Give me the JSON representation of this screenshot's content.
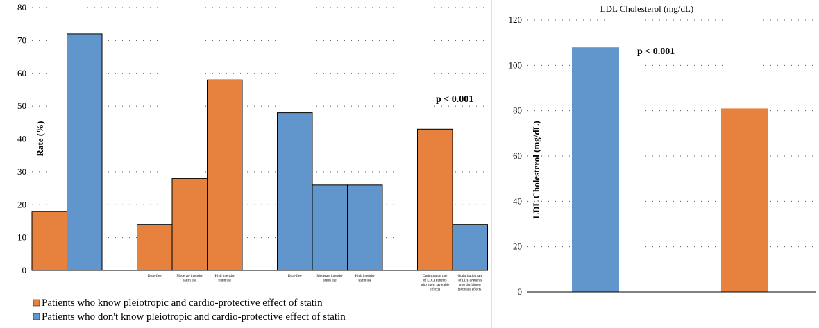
{
  "colors": {
    "orange": "#E7823E",
    "blue": "#6096CC",
    "grid": "#555555",
    "divider": "#bfbfbf"
  },
  "chart_data": [
    {
      "type": "bar",
      "title": "",
      "ylabel": "Rate (%)",
      "ylim": [
        0,
        80
      ],
      "yticks": [
        0,
        10,
        20,
        30,
        40,
        50,
        60,
        70,
        80
      ],
      "annotation": "p < 0.001",
      "grid": true,
      "legend_position": "bottom-left",
      "legend": [
        {
          "label": "Patients who know pleiotropic and cardio-protective effect of statin",
          "color": "#E7823E"
        },
        {
          "label": "Patients who don't know pleiotropic and cardio-protective effect of statin",
          "color": "#6096CC"
        }
      ],
      "groups": [
        {
          "bars": [
            {
              "label": "",
              "value": 18,
              "color": "#E7823E"
            },
            {
              "label": "",
              "value": 72,
              "color": "#6096CC"
            }
          ]
        },
        {
          "bars": [
            {
              "label": "Drug-free",
              "value": 14,
              "color": "#E7823E"
            },
            {
              "label": "Moderate intensity statin use",
              "value": 28,
              "color": "#E7823E"
            },
            {
              "label": "High intensity statin use",
              "value": 58,
              "color": "#E7823E"
            }
          ]
        },
        {
          "bars": [
            {
              "label": "Drug-free",
              "value": 48,
              "color": "#6096CC"
            },
            {
              "label": "Moderate intensity statin use",
              "value": 26,
              "color": "#6096CC"
            },
            {
              "label": "High intensity statin use",
              "value": 26,
              "color": "#6096CC"
            }
          ]
        },
        {
          "bars": [
            {
              "label": "Optimization rate of LDL (Patients who know favorable effects)",
              "value": 43,
              "color": "#E7823E"
            },
            {
              "label": "Optimization rate of LDL (Patients who don't know favorable effects)",
              "value": 14,
              "color": "#6096CC"
            }
          ]
        }
      ]
    },
    {
      "type": "bar",
      "title": "LDL Cholesterol (mg/dL)",
      "ylabel": "LDL Cholesterol (mg/dL)",
      "ylim": [
        0,
        120
      ],
      "yticks": [
        0,
        20,
        40,
        60,
        80,
        100,
        120
      ],
      "annotation": "p < 0.001",
      "grid": true,
      "categories": [
        "",
        ""
      ],
      "values": [
        108,
        81
      ],
      "colors": [
        "#6096CC",
        "#E7823E"
      ]
    }
  ]
}
